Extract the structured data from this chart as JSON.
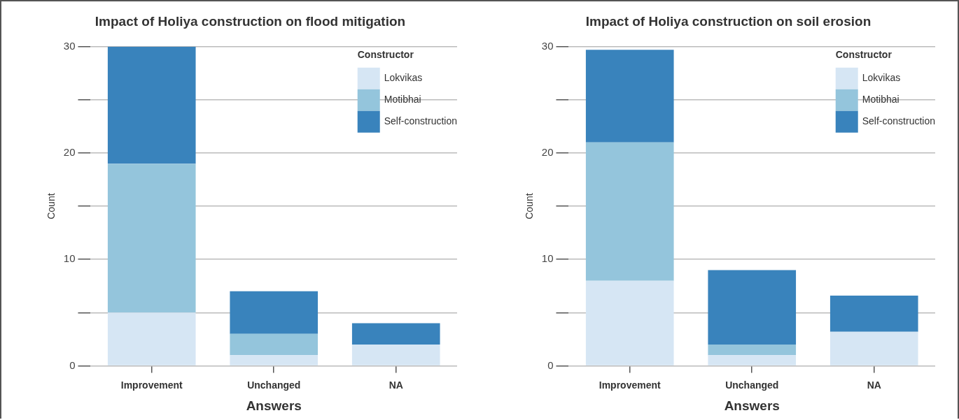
{
  "chart_data": [
    {
      "type": "bar",
      "title": "Impact of Holiya construction on flood mitigation",
      "xlabel": "Answers",
      "ylabel": "Count",
      "legend_title": "Constructor",
      "legend": "top right",
      "stacked": true,
      "grid": "y",
      "categories": [
        "Improvement",
        "Unchanged",
        "NA"
      ],
      "series": [
        {
          "name": "Lokvikas",
          "color": "#d6e6f4",
          "values": [
            5,
            1,
            2
          ]
        },
        {
          "name": "Motibhai",
          "color": "#94c5dc",
          "values": [
            14,
            2,
            0
          ]
        },
        {
          "name": "Self-construction",
          "color": "#3983bc",
          "values": [
            11,
            4,
            2
          ]
        }
      ],
      "ylim": [
        0,
        30
      ],
      "yticks": [
        0,
        {
          "value": 5,
          "label": null
        },
        10,
        {
          "value": 15,
          "label": null
        },
        20,
        {
          "value": 25,
          "label": null
        },
        30
      ]
    },
    {
      "type": "bar",
      "title": "Impact of Holiya construction on soil erosion",
      "xlabel": "Answers",
      "ylabel": "Count",
      "legend_title": "Constructor",
      "legend": "top right",
      "stacked": true,
      "grid": "y",
      "categories": [
        "Improvement",
        "Unchanged",
        "NA"
      ],
      "series": [
        {
          "name": "Lokvikas",
          "color": "#d6e6f4",
          "values": [
            8,
            1,
            3.2
          ]
        },
        {
          "name": "Motibhai",
          "color": "#94c5dc",
          "values": [
            13,
            1,
            0
          ]
        },
        {
          "name": "Self-construction",
          "color": "#3983bc",
          "values": [
            8.7,
            7,
            3.4
          ]
        }
      ],
      "ylim": [
        0,
        30
      ],
      "yticks": [
        0,
        {
          "value": 5,
          "label": null
        },
        10,
        {
          "value": 15,
          "label": null
        },
        20,
        {
          "value": 25,
          "label": null
        },
        30
      ]
    }
  ]
}
